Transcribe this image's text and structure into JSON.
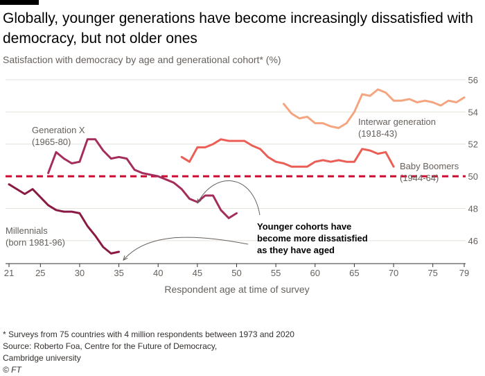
{
  "header": {
    "title": "Globally, younger generations have become increasingly dissatisfied with democracy, but not older ones",
    "subtitle": "Satisfaction with democracy by age and generational cohort* (%)"
  },
  "footer": {
    "note": "* Surveys from 75 countries with 4 million respondents between 1973 and 2020",
    "source": "Source: Roberto Foa, Centre for the Future of Democracy,",
    "source2": "Cambridge university",
    "credit": "© FT"
  },
  "chart_data": {
    "type": "line",
    "xlabel": "Respondent age at time of survey",
    "ylabel": "",
    "xlim": [
      21,
      79
    ],
    "ylim": [
      45,
      56
    ],
    "x_ticks": [
      21,
      25,
      30,
      35,
      40,
      45,
      50,
      55,
      60,
      65,
      70,
      75,
      79
    ],
    "y_ticks": [
      46,
      48,
      50,
      52,
      54,
      56
    ],
    "grid": true,
    "reference_line": {
      "y": 50,
      "color": "#cc0a2f",
      "style": "dashed"
    },
    "series": [
      {
        "name": "Millennials\n(born 1981-96)",
        "color": "#8a1a44",
        "x": [
          21,
          22,
          23,
          24,
          25,
          26,
          27,
          28,
          29,
          30,
          31,
          32,
          33,
          34,
          35
        ],
        "y": [
          49.5,
          49.2,
          48.9,
          49.2,
          48.7,
          48.2,
          47.9,
          47.8,
          47.8,
          47.7,
          46.9,
          46.3,
          45.6,
          45.2,
          45.3
        ]
      },
      {
        "name": "Generation X\n(1965-80)",
        "color": "#a42d5b",
        "x": [
          26,
          27,
          28,
          29,
          30,
          31,
          32,
          33,
          34,
          35,
          36,
          37,
          38,
          39,
          40,
          41,
          42,
          43,
          44,
          45,
          46,
          47,
          48,
          49,
          50
        ],
        "y": [
          50.2,
          51.5,
          51.1,
          50.8,
          50.9,
          52.3,
          52.3,
          51.6,
          51.1,
          51.2,
          51.1,
          50.4,
          50.2,
          50.1,
          50.0,
          49.8,
          49.6,
          49.2,
          48.6,
          48.4,
          48.8,
          48.8,
          47.9,
          47.4,
          47.7
        ]
      },
      {
        "name": "Baby Boomers\n(1944-64)",
        "color": "#eb5e55",
        "x": [
          43,
          44,
          45,
          46,
          47,
          48,
          49,
          50,
          51,
          52,
          53,
          54,
          55,
          56,
          57,
          58,
          59,
          60,
          61,
          62,
          63,
          64,
          65,
          66,
          67,
          68,
          69,
          70
        ],
        "y": [
          51.2,
          50.9,
          51.8,
          51.8,
          52.0,
          52.3,
          52.2,
          52.2,
          52.2,
          51.9,
          51.7,
          51.2,
          50.9,
          50.8,
          50.6,
          50.6,
          50.6,
          50.9,
          51.0,
          50.9,
          51.0,
          50.9,
          50.9,
          51.7,
          51.6,
          51.4,
          51.5,
          50.6
        ]
      },
      {
        "name": "Interwar generation\n(1918-43)",
        "color": "#f4a57f",
        "x": [
          56,
          57,
          58,
          59,
          60,
          61,
          62,
          63,
          64,
          65,
          66,
          67,
          68,
          69,
          70,
          71,
          72,
          73,
          74,
          75,
          76,
          77,
          78,
          79
        ],
        "y": [
          54.5,
          53.9,
          53.6,
          53.7,
          53.3,
          53.3,
          53.1,
          53.0,
          53.3,
          54.0,
          55.1,
          55.0,
          55.4,
          55.2,
          54.7,
          54.7,
          54.8,
          54.6,
          54.7,
          54.6,
          54.4,
          54.7,
          54.6,
          54.9
        ]
      }
    ],
    "annotations": [
      {
        "text": "Younger cohorts have\nbecome more dissatisfied\nas they have aged"
      }
    ]
  }
}
